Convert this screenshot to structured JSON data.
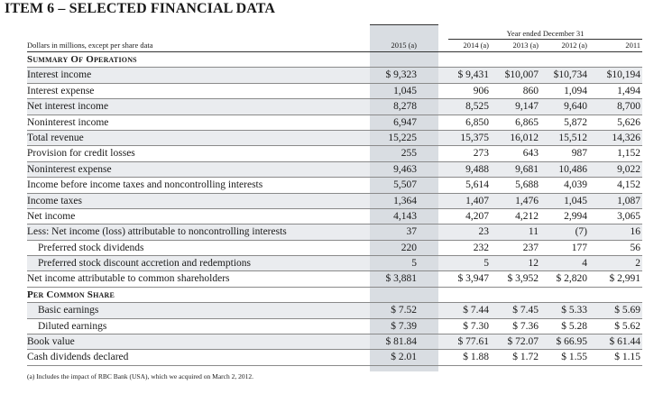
{
  "title": "ITEM 6 – SELECTED FINANCIAL DATA",
  "units_note": "Dollars in millions, except per share data",
  "header_group": "Year ended December 31",
  "columns": [
    "2015 (a)",
    "2014 (a)",
    "2013 (a)",
    "2012 (a)",
    "2011"
  ],
  "sections": {
    "operations": "Summary Of Operations",
    "per_share": "Per Common Share"
  },
  "rows": [
    {
      "type": "section",
      "label": "Summary Of Operations"
    },
    {
      "label": "Interest income",
      "values": [
        "$ 9,323",
        "$ 9,431",
        "$10,007",
        "$10,734",
        "$10,194"
      ]
    },
    {
      "label": "Interest expense",
      "values": [
        "1,045",
        "906",
        "860",
        "1,094",
        "1,494"
      ]
    },
    {
      "label": "Net interest income",
      "values": [
        "8,278",
        "8,525",
        "9,147",
        "9,640",
        "8,700"
      ]
    },
    {
      "label": "Noninterest income",
      "values": [
        "6,947",
        "6,850",
        "6,865",
        "5,872",
        "5,626"
      ]
    },
    {
      "label": "Total revenue",
      "values": [
        "15,225",
        "15,375",
        "16,012",
        "15,512",
        "14,326"
      ]
    },
    {
      "label": "Provision for credit losses",
      "values": [
        "255",
        "273",
        "643",
        "987",
        "1,152"
      ]
    },
    {
      "label": "Noninterest expense",
      "values": [
        "9,463",
        "9,488",
        "9,681",
        "10,486",
        "9,022"
      ]
    },
    {
      "label": "Income before income taxes and noncontrolling interests",
      "values": [
        "5,507",
        "5,614",
        "5,688",
        "4,039",
        "4,152"
      ]
    },
    {
      "label": "Income taxes",
      "values": [
        "1,364",
        "1,407",
        "1,476",
        "1,045",
        "1,087"
      ]
    },
    {
      "label": "Net income",
      "values": [
        "4,143",
        "4,207",
        "4,212",
        "2,994",
        "3,065"
      ]
    },
    {
      "label": "Less: Net income (loss) attributable to noncontrolling interests",
      "values": [
        "37",
        "23",
        "11",
        "(7)",
        "16"
      ]
    },
    {
      "label": "Preferred stock dividends",
      "indent": true,
      "values": [
        "220",
        "232",
        "237",
        "177",
        "56"
      ]
    },
    {
      "label": "Preferred stock discount accretion and redemptions",
      "indent": true,
      "values": [
        "5",
        "5",
        "12",
        "4",
        "2"
      ]
    },
    {
      "label": "Net income attributable to common shareholders",
      "values": [
        "$ 3,881",
        "$ 3,947",
        "$ 3,952",
        "$ 2,820",
        "$ 2,991"
      ]
    },
    {
      "type": "section",
      "label": "Per Common Share"
    },
    {
      "label": "Basic earnings",
      "indent": true,
      "values": [
        "$ 7.52",
        "$ 7.44",
        "$ 7.45",
        "$ 5.33",
        "$ 5.69"
      ]
    },
    {
      "label": "Diluted earnings",
      "indent": true,
      "values": [
        "$ 7.39",
        "$ 7.30",
        "$ 7.36",
        "$ 5.28",
        "$ 5.62"
      ]
    },
    {
      "label": "Book value",
      "values": [
        "$ 81.84",
        "$ 77.61",
        "$ 72.07",
        "$ 66.95",
        "$ 61.44"
      ]
    },
    {
      "label": "Cash dividends declared",
      "values": [
        "$ 2.01",
        "$ 1.88",
        "$ 1.72",
        "$ 1.55",
        "$ 1.15"
      ]
    }
  ],
  "footnote": "(a)  Includes the impact of RBC Bank (USA), which we acquired on March 2, 2012."
}
